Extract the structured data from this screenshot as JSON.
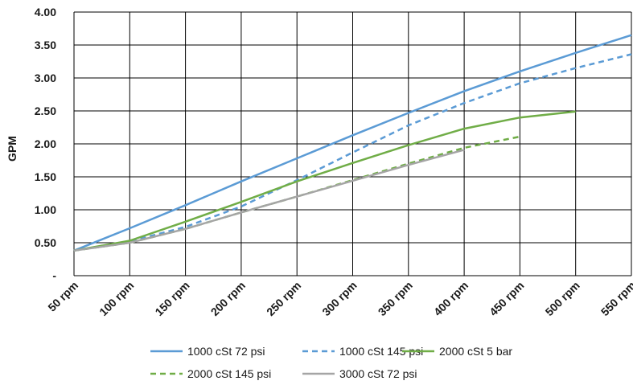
{
  "chart_data": {
    "type": "line",
    "title": "",
    "xlabel": "",
    "ylabel": "GPM",
    "categories": [
      "50 rpm",
      "100 rpm",
      "150 rpm",
      "200 rpm",
      "250 rpm",
      "300 rpm",
      "350 rpm",
      "400 rpm",
      "450 rpm",
      "500 rpm",
      "550 rpm"
    ],
    "y_tick_labels": [
      "-",
      "0.50",
      "1.00",
      "1.50",
      "2.00",
      "2.50",
      "3.00",
      "3.50",
      "4.00"
    ],
    "ylim": [
      0,
      4
    ],
    "grid": true,
    "legend_position": "bottom",
    "series": [
      {
        "name": "1000 cSt 72 psi",
        "color": "#5b9bd5",
        "dash": "solid",
        "values": [
          0.38,
          0.72,
          1.07,
          1.43,
          1.78,
          2.13,
          2.47,
          2.8,
          3.1,
          3.38,
          3.65
        ]
      },
      {
        "name": "1000 cSt 145 psi",
        "color": "#5b9bd5",
        "dash": "dashed",
        "values": [
          0.38,
          0.52,
          0.74,
          1.05,
          1.45,
          1.87,
          2.28,
          2.62,
          2.92,
          3.15,
          3.36
        ]
      },
      {
        "name": "2000 cSt 5 bar",
        "color": "#70ad47",
        "dash": "solid",
        "values": [
          0.38,
          0.53,
          0.82,
          1.12,
          1.43,
          1.71,
          1.98,
          2.23,
          2.4,
          2.49,
          null
        ]
      },
      {
        "name": "2000 cSt 145 psi",
        "color": "#70ad47",
        "dash": "dashed",
        "values": [
          0.38,
          0.5,
          0.71,
          0.96,
          1.2,
          1.45,
          1.7,
          1.94,
          2.11,
          null,
          null
        ]
      },
      {
        "name": "3000 cSt 72 psi",
        "color": "#a5a5a5",
        "dash": "solid",
        "values": [
          0.38,
          0.5,
          0.71,
          0.96,
          1.2,
          1.44,
          1.68,
          1.91,
          null,
          null,
          null
        ]
      }
    ]
  }
}
